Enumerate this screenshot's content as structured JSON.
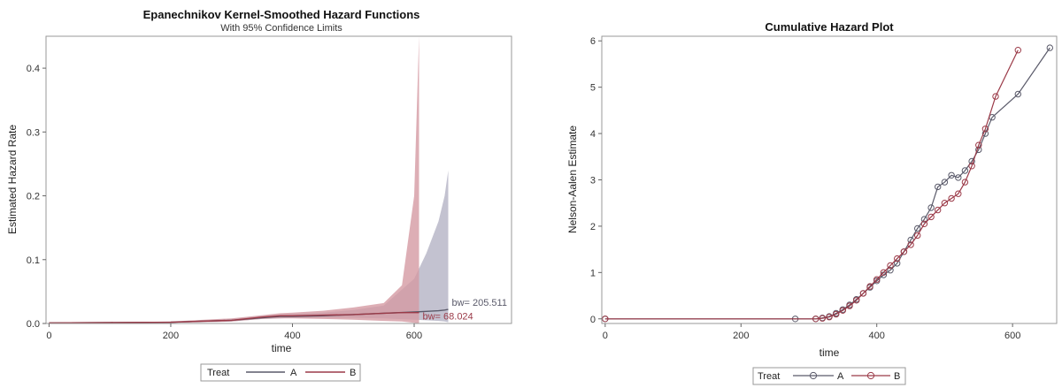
{
  "chart_data": [
    {
      "type": "area",
      "title": "Epanechnikov Kernel-Smoothed Hazard Functions",
      "subtitle": "With 95% Confidence Limits",
      "xlabel": "time",
      "ylabel": "Estimated Hazard Rate",
      "xlim": [
        -5,
        760
      ],
      "ylim": [
        0,
        0.45
      ],
      "xticks": [
        0,
        200,
        400,
        600
      ],
      "yticks": [
        0.0,
        0.1,
        0.2,
        0.3,
        0.4
      ],
      "ytick_labels": [
        "0.0",
        "0.1",
        "0.2",
        "0.3",
        "0.4"
      ],
      "grid": false,
      "legend": {
        "title": "Treat",
        "position": "bottom-center"
      },
      "colors": {
        "A": "#5a5a6a",
        "B": "#9b3a48",
        "A_band": "#b9b7c8",
        "B_band": "#d59aa3"
      },
      "series": [
        {
          "name": "A",
          "annotation": "bw= 205.511",
          "x": [
            0,
            100,
            200,
            300,
            350,
            380,
            400,
            450,
            500,
            550,
            600,
            620,
            640,
            650,
            656
          ],
          "y": [
            0.001,
            0.0015,
            0.002,
            0.005,
            0.009,
            0.011,
            0.011,
            0.012,
            0.014,
            0.016,
            0.018,
            0.019,
            0.02,
            0.021,
            0.022
          ],
          "upper": [
            0.001,
            0.0015,
            0.003,
            0.007,
            0.012,
            0.014,
            0.015,
            0.017,
            0.021,
            0.028,
            0.07,
            0.11,
            0.16,
            0.2,
            0.24
          ],
          "lower": [
            0.001,
            0.001,
            0.001,
            0.003,
            0.007,
            0.008,
            0.009,
            0.009,
            0.009,
            0.008,
            0.006,
            0.005,
            0.004,
            0.003,
            0.002
          ]
        },
        {
          "name": "B",
          "annotation": "bw= 68.024",
          "x": [
            0,
            100,
            200,
            300,
            350,
            380,
            400,
            450,
            500,
            550,
            580,
            600,
            608
          ],
          "y": [
            0.001,
            0.0015,
            0.002,
            0.005,
            0.01,
            0.012,
            0.012,
            0.013,
            0.014,
            0.016,
            0.017,
            0.017,
            0.017
          ],
          "upper": [
            0.001,
            0.002,
            0.003,
            0.008,
            0.013,
            0.016,
            0.017,
            0.02,
            0.025,
            0.032,
            0.06,
            0.2,
            0.45
          ],
          "lower": [
            0.001,
            0.001,
            0.001,
            0.003,
            0.007,
            0.008,
            0.008,
            0.007,
            0.006,
            0.004,
            0.003,
            0.001,
            0.0
          ]
        }
      ]
    },
    {
      "type": "line",
      "title": "Cumulative Hazard Plot",
      "xlabel": "time",
      "ylabel": "Nelson-Aalen Estimate",
      "xlim": [
        -5,
        665
      ],
      "ylim": [
        -0.1,
        6.1
      ],
      "xticks": [
        0,
        200,
        400,
        600
      ],
      "yticks": [
        0,
        1,
        2,
        3,
        4,
        5,
        6
      ],
      "grid": false,
      "legend": {
        "title": "Treat",
        "position": "bottom-center"
      },
      "colors": {
        "A": "#5a5a6a",
        "B": "#9b3a48"
      },
      "series": [
        {
          "name": "A",
          "x": [
            0,
            280,
            310,
            320,
            330,
            340,
            350,
            360,
            370,
            380,
            390,
            400,
            410,
            420,
            430,
            440,
            450,
            460,
            470,
            480,
            490,
            500,
            510,
            520,
            530,
            540,
            550,
            560,
            570,
            608,
            655
          ],
          "y": [
            0,
            0,
            0,
            0.02,
            0.05,
            0.12,
            0.2,
            0.3,
            0.42,
            0.55,
            0.68,
            0.82,
            0.95,
            1.05,
            1.2,
            1.45,
            1.7,
            1.95,
            2.15,
            2.4,
            2.85,
            2.95,
            3.1,
            3.05,
            3.2,
            3.4,
            3.65,
            4.0,
            4.35,
            4.85,
            5.85
          ]
        },
        {
          "name": "B",
          "x": [
            0,
            310,
            320,
            330,
            340,
            350,
            360,
            370,
            380,
            390,
            400,
            410,
            420,
            430,
            440,
            450,
            460,
            470,
            480,
            490,
            500,
            510,
            520,
            530,
            540,
            550,
            560,
            575,
            608
          ],
          "y": [
            0,
            0,
            0.01,
            0.04,
            0.1,
            0.18,
            0.28,
            0.4,
            0.55,
            0.7,
            0.85,
            1.0,
            1.15,
            1.3,
            1.45,
            1.6,
            1.8,
            2.05,
            2.2,
            2.35,
            2.5,
            2.6,
            2.7,
            2.95,
            3.3,
            3.75,
            4.1,
            4.8,
            5.8
          ]
        }
      ]
    }
  ]
}
